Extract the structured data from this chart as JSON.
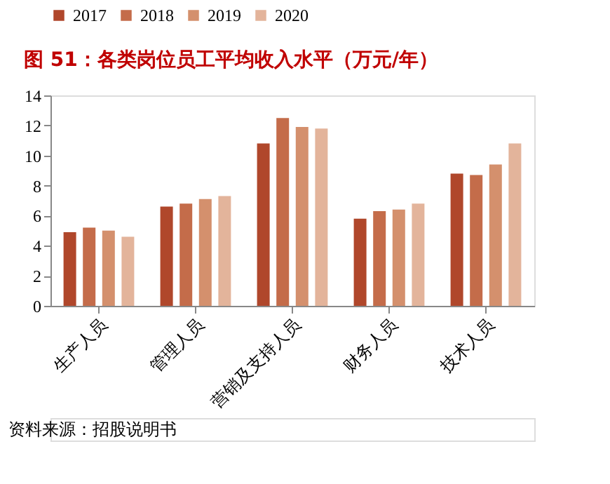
{
  "chart_data": {
    "type": "bar",
    "title": "图 51：各类岗位员工平均收入水平（万元/年）",
    "categories": [
      "生产人员",
      "管理人员",
      "营销及支持人员",
      "财务人员",
      "技术人员"
    ],
    "series": [
      {
        "name": "2017",
        "color": "#b0472b",
        "values": [
          4.9,
          6.6,
          10.8,
          5.8,
          8.8
        ]
      },
      {
        "name": "2018",
        "color": "#c46c4a",
        "values": [
          5.2,
          6.8,
          12.5,
          6.3,
          8.7
        ]
      },
      {
        "name": "2019",
        "color": "#d4906d",
        "values": [
          5.0,
          7.1,
          11.9,
          6.4,
          9.4
        ]
      },
      {
        "name": "2020",
        "color": "#e3b49b",
        "values": [
          4.6,
          7.3,
          11.8,
          6.8,
          10.8
        ]
      }
    ],
    "ylim": [
      0,
      14
    ],
    "yticks": [
      0,
      2,
      4,
      6,
      8,
      10,
      12,
      14
    ],
    "grid": false,
    "legend": "top",
    "annotations": [
      "资料来源：招股说明书"
    ]
  }
}
